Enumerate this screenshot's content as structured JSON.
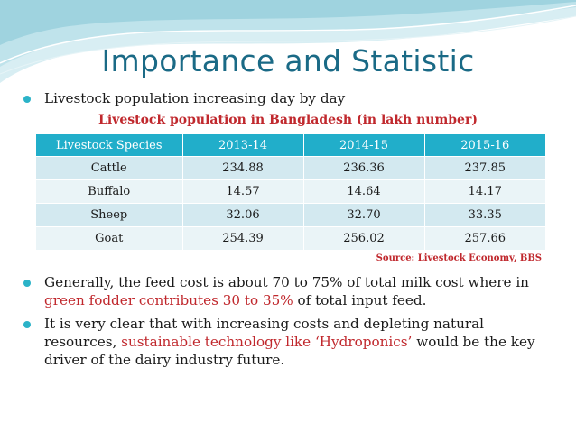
{
  "slide": {
    "title": "Importance and Statistic",
    "bullets": [
      {
        "text": "Livestock population increasing day by day"
      },
      {
        "pre": "Generally, the feed cost is about 70 to 75% of total milk cost where in ",
        "highlight": "green fodder contributes 30 to 35%",
        "post": " of total input feed."
      },
      {
        "pre": "It is very clear that with increasing costs and depleting natural resources, ",
        "highlight": "sustainable technology like ‘Hydroponics’",
        "post": " would be the key driver of the dairy industry future."
      }
    ],
    "table_title": "Livestock population in Bangladesh (in lakh number)",
    "table": {
      "headers": [
        "Livestock Species",
        "2013-14",
        "2014-15",
        "2015-16"
      ],
      "rows": [
        [
          "Cattle",
          "234.88",
          "236.36",
          "237.85"
        ],
        [
          "Buffalo",
          "14.57",
          "14.64",
          "14.17"
        ],
        [
          "Sheep",
          "32.06",
          "32.70",
          "33.35"
        ],
        [
          "Goat",
          "254.39",
          "256.02",
          "257.66"
        ]
      ]
    },
    "source": "Source: Livestock Economy, BBS",
    "colors": {
      "title": "#1a6a86",
      "accent": "#21aeca",
      "highlight": "#c0282d",
      "row_odd": "#d3e9f0",
      "row_even": "#eaf4f7"
    }
  }
}
